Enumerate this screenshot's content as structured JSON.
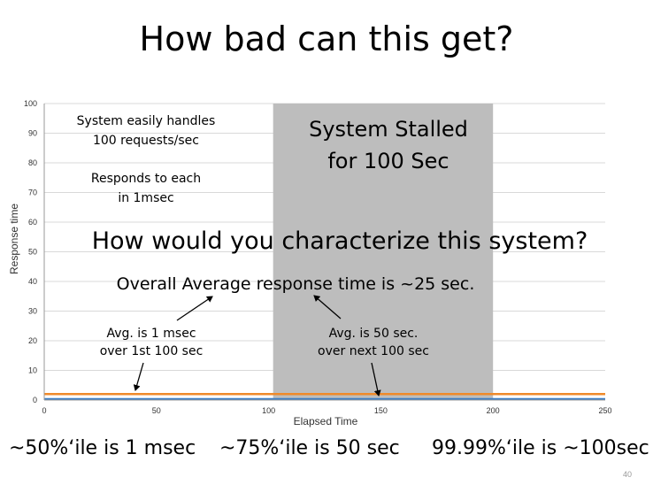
{
  "slide": {
    "title": "How bad can this get?",
    "page_number": "40"
  },
  "chart_data": {
    "type": "line",
    "xlabel": "Elapsed Time",
    "ylabel": "Response time",
    "xlim": [
      0,
      250
    ],
    "ylim": [
      0,
      100
    ],
    "x_ticks": [
      0,
      50,
      100,
      150,
      200,
      250
    ],
    "y_ticks": [
      0,
      10,
      20,
      30,
      40,
      50,
      60,
      70,
      80,
      90,
      100
    ],
    "grid": true,
    "series": [
      {
        "color": "#3b7dc4",
        "x": [
          0,
          250
        ],
        "values": [
          0.3,
          0.3
        ]
      },
      {
        "color": "#ef8a2a",
        "x": [
          0,
          250
        ],
        "values": [
          2,
          2
        ]
      }
    ],
    "shaded_region": {
      "x": [
        102,
        200
      ],
      "color": "#bdbdbd",
      "label_lines": [
        "System Stalled",
        "for 100 Sec"
      ]
    }
  },
  "annotations": {
    "handles_lines": [
      "System easily handles",
      "100 requests/sec"
    ],
    "responds_lines": [
      "Responds to each",
      "in 1msec"
    ],
    "question": "How would you characterize this system?",
    "average": "Overall Average response time is ~25 sec.",
    "first_period_lines": [
      "Avg. is 1 msec",
      "over 1st 100 sec"
    ],
    "second_period_lines": [
      "Avg. is 50 sec.",
      "over next 100 sec"
    ]
  },
  "bottom_notes": {
    "p50": "~50%‘ile is 1 msec",
    "p75": "~75%‘ile is 50 sec",
    "p9999": "99.99%‘ile is ~100sec"
  }
}
